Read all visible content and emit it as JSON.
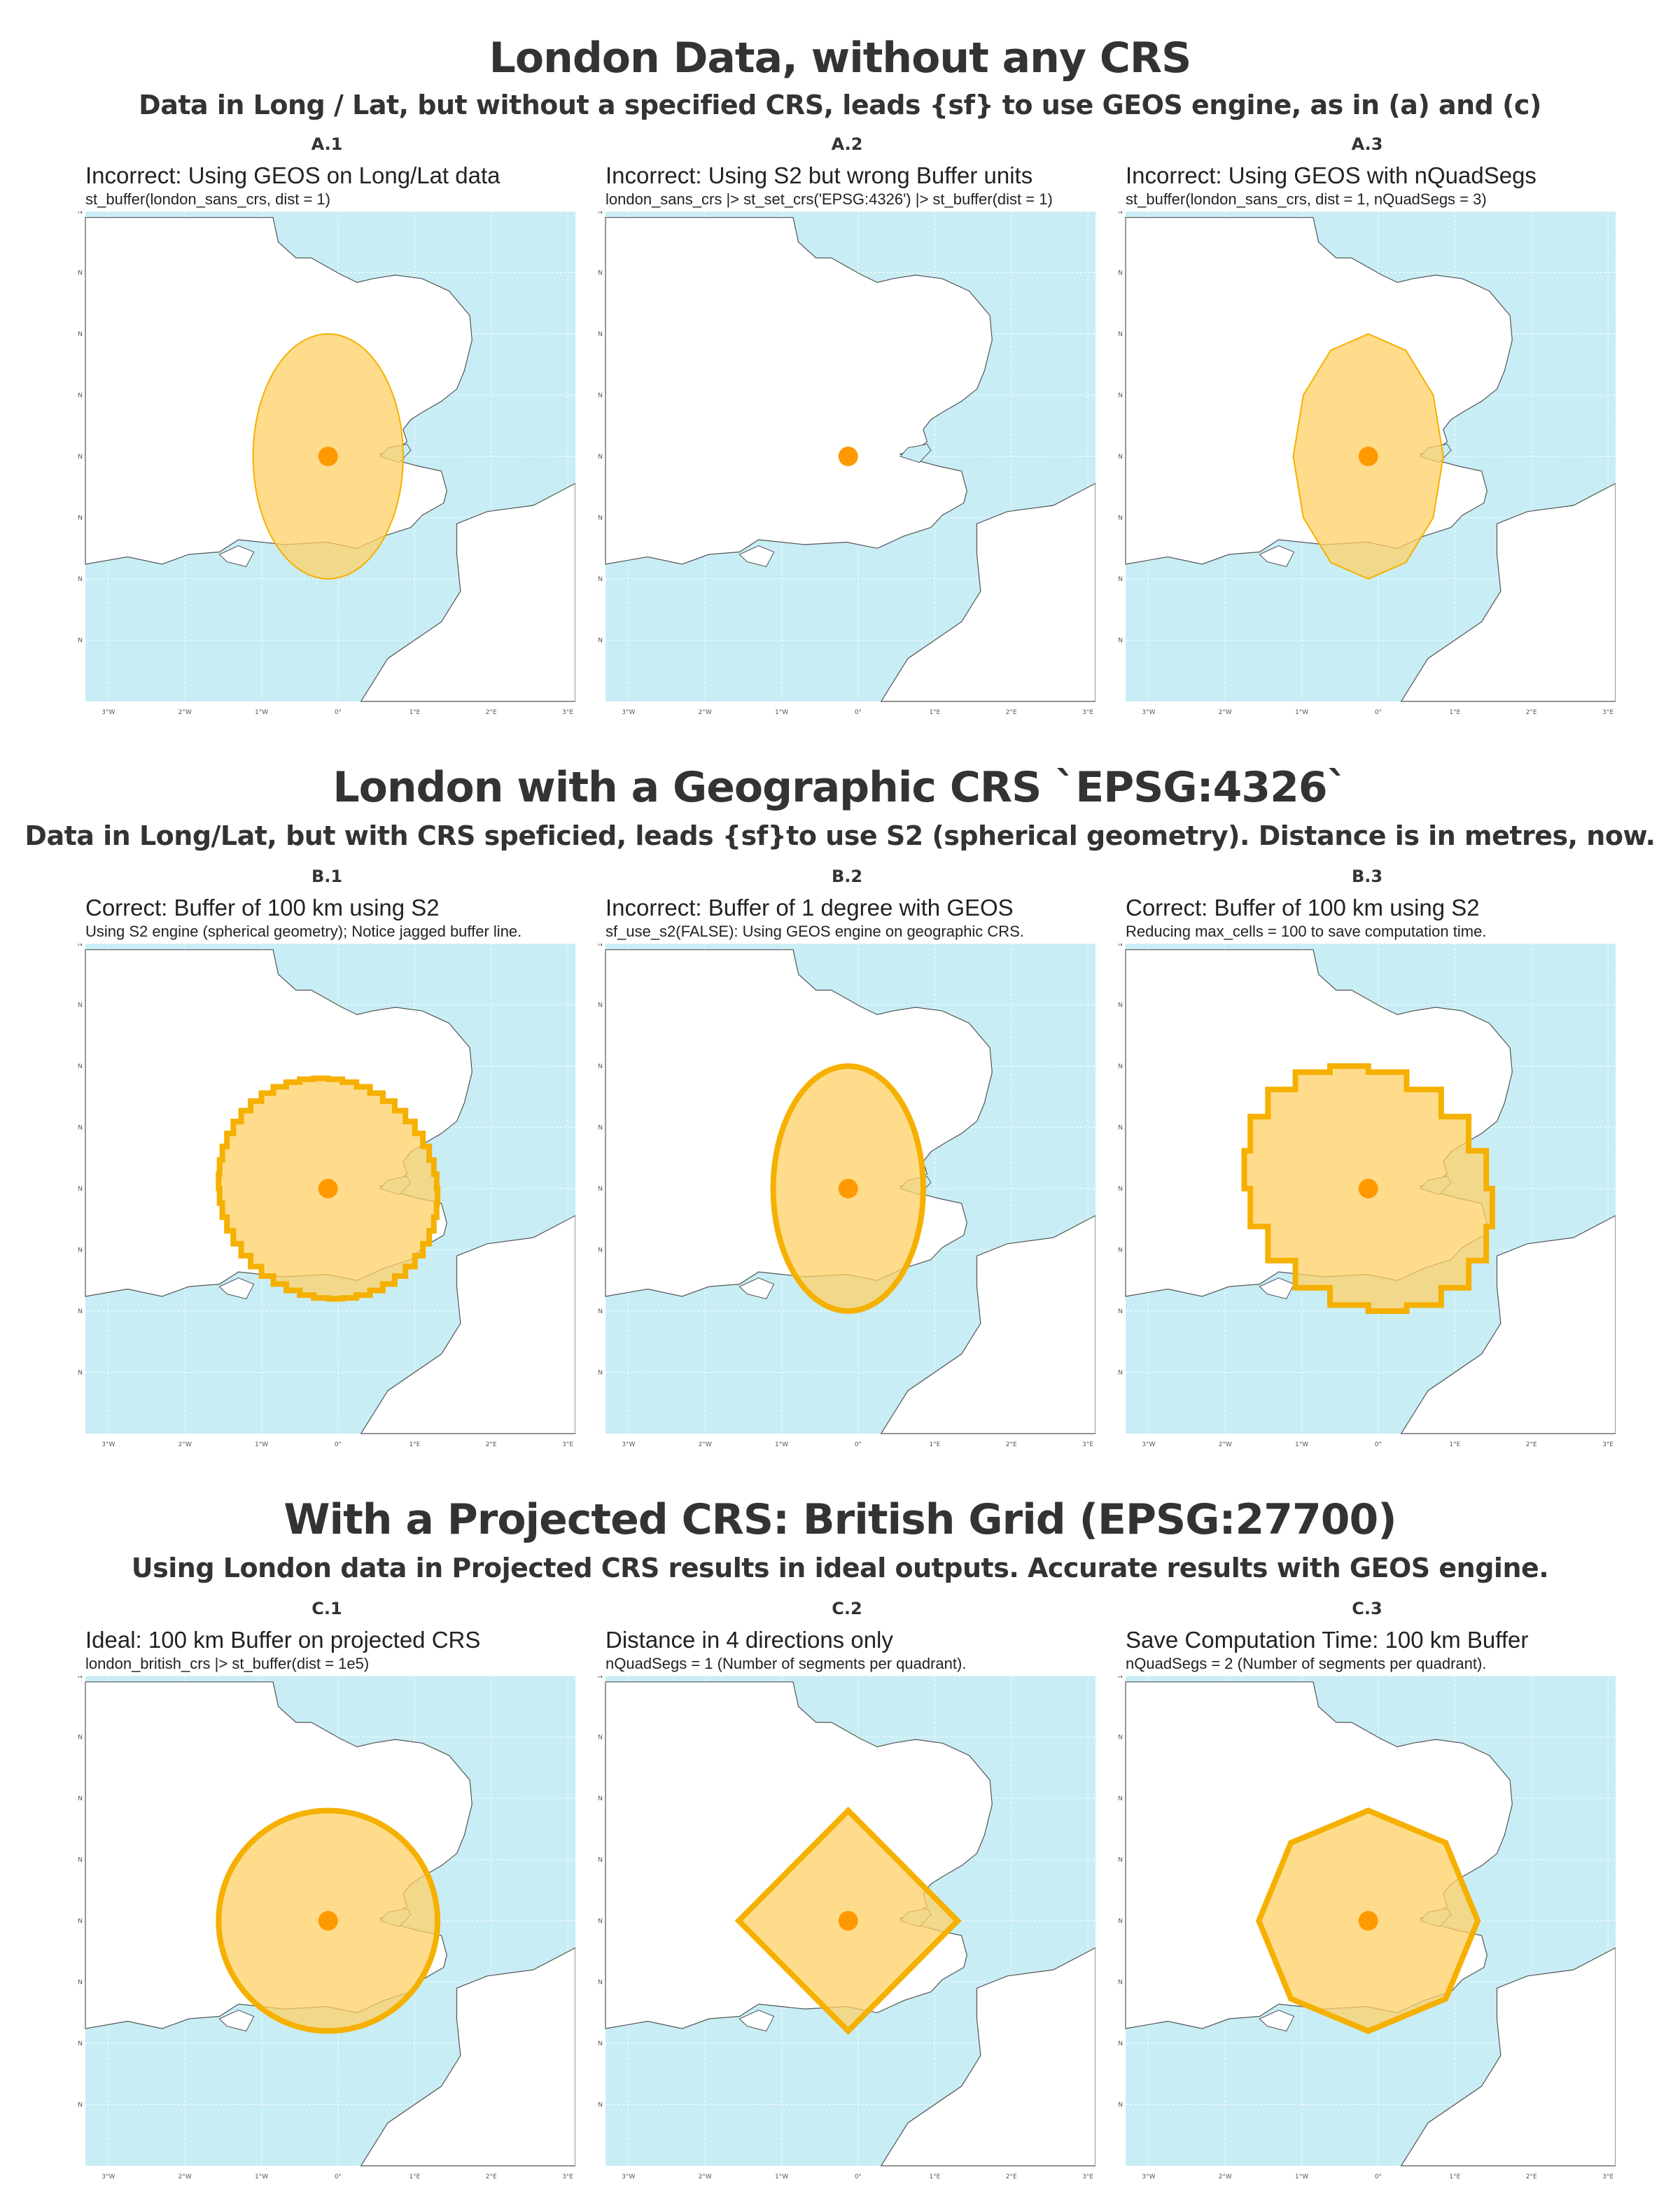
{
  "sections": [
    {
      "title": "London Data, without any CRS",
      "subtitle": "Data in Long / Lat, but without a specified CRS, leads {sf} to use GEOS engine, as in (a) and (c)",
      "panels": [
        {
          "tag": "A.1",
          "title": "Incorrect: Using GEOS on Long/Lat data",
          "subtitle": "st_buffer(london_sans_crs, dist = 1)",
          "buffer": "ellipse",
          "buffer_style": "thin"
        },
        {
          "tag": "A.2",
          "title": "Incorrect: Using S2 but wrong Buffer units",
          "subtitle": "london_sans_crs |> st_set_crs('EPSG:4326') |> st_buffer(dist = 1)",
          "buffer": "none",
          "buffer_style": "none"
        },
        {
          "tag": "A.3",
          "title": "Incorrect: Using GEOS with nQuadSegs",
          "subtitle": "st_buffer(london_sans_crs, dist = 1, nQuadSegs = 3)",
          "buffer": "dodecagon",
          "buffer_style": "thin"
        }
      ]
    },
    {
      "title": "London with a Geographic CRS `EPSG:4326`",
      "subtitle": "Data in Long/Lat, but with CRS speficied, leads {sf}to use S2 (spherical geometry). Distance is in metres, now.",
      "panels": [
        {
          "tag": "B.1",
          "title": "Correct: Buffer of 100 km using S2",
          "subtitle": "Using S2 engine (spherical geometry); Notice jagged buffer line.",
          "buffer": "jagged-circle",
          "buffer_style": "thick"
        },
        {
          "tag": "B.2",
          "title": "Incorrect: Buffer of 1 degree with GEOS",
          "subtitle": "sf_use_s2(FALSE):  Using GEOS engine on geographic CRS.",
          "buffer": "ellipse",
          "buffer_style": "thick"
        },
        {
          "tag": "B.3",
          "title": "Correct: Buffer of 100 km using S2",
          "subtitle": "Reducing max_cells = 100 to save computation time.",
          "buffer": "blocky-circle",
          "buffer_style": "thick"
        }
      ]
    },
    {
      "title": "With a Projected CRS: British Grid (EPSG:27700)",
      "subtitle": "Using London data in Projected CRS results in ideal outputs. Accurate results with GEOS engine.",
      "panels": [
        {
          "tag": "C.1",
          "title": "Ideal: 100 km Buffer on projected CRS",
          "subtitle": "london_british_crs |> st_buffer(dist = 1e5)",
          "buffer": "circle",
          "buffer_style": "thick"
        },
        {
          "tag": "C.2",
          "title": "Distance in 4 directions only",
          "subtitle": "nQuadSegs = 1  (Number of segments per quadrant).",
          "buffer": "diamond",
          "buffer_style": "thick"
        },
        {
          "tag": "C.3",
          "title": "Save Computation Time: 100 km Buffer",
          "subtitle": "nQuadSegs = 2  (Number of segments per quadrant).",
          "buffer": "octagon",
          "buffer_style": "thick"
        }
      ]
    }
  ],
  "map": {
    "y_ticks": [
      "53.5°N",
      "53.0°N",
      "52.5°N",
      "52.0°N",
      "51.5°N",
      "51.0°N",
      "50.5°N",
      "50.0°N"
    ],
    "x_ticks": [
      "3°W",
      "2°W",
      "1°W",
      "0°",
      "1°E",
      "2°E",
      "3°E"
    ],
    "london_point": {
      "lon": -0.13,
      "lat": 51.5
    },
    "colors": {
      "sea": "#c8edf5",
      "land": "#ffffff",
      "coast": "#555555",
      "buffer_fill": "#ffd066",
      "buffer_stroke": "#f5b000",
      "point": "#ff9900",
      "grid": "#ffffff"
    }
  }
}
